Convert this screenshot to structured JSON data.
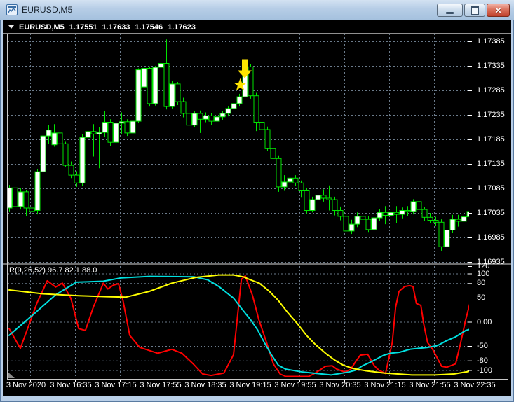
{
  "window": {
    "title": "EURUSD,M5",
    "controls": {
      "minimize_glyph": "",
      "restore_glyph": "",
      "close_glyph": "✕"
    }
  },
  "chart_header": {
    "symbol": "EURUSD,M5",
    "open": "1.17551",
    "high": "1.17633",
    "low": "1.17546",
    "close": "1.17623"
  },
  "indicator": {
    "label": "R(9,26,52) 96.7 82.1 88.0",
    "name": "R",
    "params": "9,26,52",
    "values": [
      "96.7",
      "82.1",
      "88.0"
    ]
  },
  "price_axis": {
    "labels": [
      "1.17385",
      "1.17335",
      "1.17285",
      "1.17235",
      "1.17185",
      "1.17135",
      "1.17085",
      "1.17035",
      "1.16985",
      "1.16935"
    ]
  },
  "indicator_axis": {
    "labels": [
      "120",
      "100",
      "80",
      "50",
      "0.00",
      "-50",
      "-80",
      "-100"
    ],
    "values": [
      120,
      100,
      80,
      50,
      0,
      -50,
      -80,
      -100
    ]
  },
  "time_axis": {
    "labels": [
      "3 Nov 2020",
      "3 Nov 16:35",
      "3 Nov 17:15",
      "3 Nov 17:55",
      "3 Nov 18:35",
      "3 Nov 19:15",
      "3 Nov 19:55",
      "3 Nov 20:35",
      "3 Nov 21:15",
      "3 Nov 21:55",
      "3 Nov 22:35"
    ]
  },
  "colors": {
    "background": "#000000",
    "grid": "#6b7b8b",
    "frame": "#c8c8c8",
    "separator": "#6e6e6e",
    "candle_outline": "#00e400",
    "bull_fill": "#ffffff",
    "bear_fill": "#000000",
    "fast_line": "#ff0000",
    "mid_line": "#00e0e0",
    "slow_line": "#ffff00",
    "annotation": "#ffe400",
    "text": "#ffffff"
  },
  "chart_data": [
    {
      "type": "candlestick",
      "symbol": "EURUSD",
      "timeframe": "M5",
      "ylim": [
        1.1693,
        1.17395
      ],
      "y_ticks": [
        1.17385,
        1.17335,
        1.17285,
        1.17235,
        1.17185,
        1.17135,
        1.17085,
        1.17035,
        1.16985,
        1.16935
      ],
      "x_tick_labels": [
        "3 Nov 2020",
        "3 Nov 16:35",
        "3 Nov 17:15",
        "3 Nov 17:55",
        "3 Nov 18:35",
        "3 Nov 19:15",
        "3 Nov 19:55",
        "3 Nov 20:35",
        "3 Nov 21:15",
        "3 Nov 21:55",
        "3 Nov 22:35"
      ],
      "candles": [
        [
          1.17045,
          1.17092,
          1.17038,
          1.17086
        ],
        [
          1.17086,
          1.17097,
          1.1704,
          1.17048
        ],
        [
          1.17048,
          1.17085,
          1.17042,
          1.17078
        ],
        [
          1.17078,
          1.17082,
          1.17028,
          1.17045
        ],
        [
          1.17045,
          1.17052,
          1.17025,
          1.17038
        ],
        [
          1.1704,
          1.17125,
          1.17032,
          1.17119
        ],
        [
          1.17119,
          1.172,
          1.17112,
          1.17192
        ],
        [
          1.17192,
          1.17215,
          1.17175,
          1.17204
        ],
        [
          1.17174,
          1.17216,
          1.1717,
          1.17198
        ],
        [
          1.17198,
          1.17205,
          1.1717,
          1.17176
        ],
        [
          1.17176,
          1.1718,
          1.17128,
          1.17132
        ],
        [
          1.17132,
          1.1714,
          1.17106,
          1.17112
        ],
        [
          1.17112,
          1.1712,
          1.17088,
          1.17096
        ],
        [
          1.17096,
          1.17195,
          1.1709,
          1.17189
        ],
        [
          1.17189,
          1.17236,
          1.17183,
          1.17201
        ],
        [
          1.17201,
          1.17216,
          1.1715,
          1.17196
        ],
        [
          1.17196,
          1.1721,
          1.17126,
          1.17199
        ],
        [
          1.17199,
          1.17243,
          1.1719,
          1.1722
        ],
        [
          1.1722,
          1.17226,
          1.17172,
          1.17179
        ],
        [
          1.17179,
          1.1723,
          1.17174,
          1.17218
        ],
        [
          1.17218,
          1.1724,
          1.17196,
          1.17221
        ],
        [
          1.17221,
          1.17226,
          1.17192,
          1.17198
        ],
        [
          1.17198,
          1.1724,
          1.17194,
          1.17222
        ],
        [
          1.17222,
          1.1733,
          1.17218,
          1.17327
        ],
        [
          1.17292,
          1.17351,
          1.17288,
          1.1733
        ],
        [
          1.1733,
          1.17334,
          1.17252,
          1.17258
        ],
        [
          1.17258,
          1.17335,
          1.17254,
          1.17332
        ],
        [
          1.17332,
          1.17351,
          1.17322,
          1.1734
        ],
        [
          1.1734,
          1.17389,
          1.17246,
          1.17252
        ],
        [
          1.17252,
          1.17305,
          1.17248,
          1.17298
        ],
        [
          1.17298,
          1.17302,
          1.17255,
          1.17262
        ],
        [
          1.17262,
          1.1727,
          1.1723,
          1.17238
        ],
        [
          1.17238,
          1.17246,
          1.17206,
          1.17214
        ],
        [
          1.17214,
          1.17242,
          1.1721,
          1.17238
        ],
        [
          1.17238,
          1.17244,
          1.17198,
          1.17226
        ],
        [
          1.17226,
          1.1724,
          1.1722,
          1.17233
        ],
        [
          1.17233,
          1.17238,
          1.17214,
          1.17222
        ],
        [
          1.17222,
          1.17236,
          1.17218,
          1.17231
        ],
        [
          1.17231,
          1.17243,
          1.17224,
          1.17238
        ],
        [
          1.17238,
          1.17252,
          1.17232,
          1.17248
        ],
        [
          1.17248,
          1.17262,
          1.17242,
          1.17258
        ],
        [
          1.17258,
          1.17278,
          1.17252,
          1.17272
        ],
        [
          1.17272,
          1.1734,
          1.17268,
          1.17333
        ],
        [
          1.17333,
          1.17338,
          1.17268,
          1.17274
        ],
        [
          1.17274,
          1.1728,
          1.17202,
          1.1722
        ],
        [
          1.1722,
          1.17226,
          1.17196,
          1.17205
        ],
        [
          1.17205,
          1.17211,
          1.17162,
          1.17166
        ],
        [
          1.17166,
          1.17172,
          1.1714,
          1.17146
        ],
        [
          1.17146,
          1.17151,
          1.17078,
          1.17088
        ],
        [
          1.17088,
          1.17112,
          1.1708,
          1.17098
        ],
        [
          1.17098,
          1.17113,
          1.17086,
          1.17106
        ],
        [
          1.17106,
          1.17112,
          1.1709,
          1.17096
        ],
        [
          1.17096,
          1.17101,
          1.17066,
          1.1708
        ],
        [
          1.1708,
          1.17085,
          1.17034,
          1.1704
        ],
        [
          1.1704,
          1.17068,
          1.17036,
          1.17062
        ],
        [
          1.17062,
          1.17086,
          1.17056,
          1.17071
        ],
        [
          1.17071,
          1.17083,
          1.17058,
          1.17065
        ],
        [
          1.17065,
          1.17091,
          1.1704,
          1.17062
        ],
        [
          1.17062,
          1.17068,
          1.1703,
          1.1704
        ],
        [
          1.1704,
          1.17048,
          1.1702,
          1.17028
        ],
        [
          1.17028,
          1.17034,
          1.1699,
          1.16998
        ],
        [
          1.16998,
          1.17021,
          1.16992,
          1.17012
        ],
        [
          1.17012,
          1.17036,
          1.17006,
          1.17028
        ],
        [
          1.17028,
          1.17041,
          1.1701,
          1.17022
        ],
        [
          1.17022,
          1.17028,
          1.16996,
          1.17001
        ],
        [
          1.17001,
          1.17031,
          1.16996,
          1.17025
        ],
        [
          1.17025,
          1.17043,
          1.17018,
          1.17036
        ],
        [
          1.17036,
          1.17049,
          1.17012,
          1.1703
        ],
        [
          1.1703,
          1.17041,
          1.17022,
          1.17036
        ],
        [
          1.17036,
          1.17049,
          1.17014,
          1.17032
        ],
        [
          1.17032,
          1.17046,
          1.17024,
          1.1704
        ],
        [
          1.1704,
          1.17049,
          1.17029,
          1.17038
        ],
        [
          1.17038,
          1.17063,
          1.17032,
          1.17058
        ],
        [
          1.17058,
          1.17062,
          1.17034,
          1.17042
        ],
        [
          1.17042,
          1.17047,
          1.17018,
          1.17026
        ],
        [
          1.17026,
          1.17035,
          1.17014,
          1.1702
        ],
        [
          1.1702,
          1.17027,
          1.17009,
          1.17016
        ],
        [
          1.17016,
          1.17022,
          1.16958,
          1.16966
        ],
        [
          1.16966,
          1.17006,
          1.1696,
          1.17
        ],
        [
          1.17,
          1.17031,
          1.16994,
          1.17022
        ],
        [
          1.17022,
          1.17031,
          1.17007,
          1.17018
        ],
        [
          1.17018,
          1.17033,
          1.17012,
          1.17027
        ],
        [
          1.17027,
          1.17043,
          1.1702,
          1.17038
        ]
      ]
    },
    {
      "type": "line",
      "title": "R(9,26,52)",
      "ylim": [
        -120,
        120
      ],
      "y_ticks": [
        120,
        100,
        80,
        50,
        0,
        -50,
        -80,
        -100
      ],
      "series": [
        {
          "name": "R fast",
          "color": "#ff0000",
          "points": [
            [
              1,
              -14
            ],
            [
              3,
              -55
            ],
            [
              6,
              40
            ],
            [
              7.8,
              85
            ],
            [
              9.3,
              72
            ],
            [
              10.5,
              80
            ],
            [
              12,
              49
            ],
            [
              13.4,
              -14
            ],
            [
              14.6,
              -18
            ],
            [
              16,
              30
            ],
            [
              17.8,
              80
            ],
            [
              18.6,
              68
            ],
            [
              19.6,
              76
            ],
            [
              20.5,
              79
            ],
            [
              21.3,
              44
            ],
            [
              22.5,
              -28
            ],
            [
              24.3,
              -53
            ],
            [
              27.5,
              -65
            ],
            [
              30,
              -57
            ],
            [
              31.8,
              -65
            ],
            [
              33.8,
              -87
            ],
            [
              35.5,
              -108
            ],
            [
              37,
              -111
            ],
            [
              39.3,
              -106
            ],
            [
              41,
              -68
            ],
            [
              42.4,
              88
            ],
            [
              43.1,
              95
            ],
            [
              44.4,
              54
            ],
            [
              45.5,
              5
            ],
            [
              46.9,
              -43
            ],
            [
              48.1,
              -87
            ],
            [
              49.3,
              -108
            ],
            [
              50.3,
              -113
            ],
            [
              54.4,
              -113
            ],
            [
              55.6,
              -106
            ],
            [
              57.4,
              -92
            ],
            [
              58.6,
              -91
            ],
            [
              59.4,
              -98
            ],
            [
              60.9,
              -104
            ],
            [
              61.9,
              -98
            ],
            [
              62.8,
              -82
            ],
            [
              63.6,
              -69
            ],
            [
              64.9,
              -67
            ],
            [
              66.1,
              -91
            ],
            [
              66.9,
              -100
            ],
            [
              68.1,
              -107
            ],
            [
              69.3,
              -43
            ],
            [
              69.9,
              30
            ],
            [
              70.5,
              63
            ],
            [
              71.5,
              73
            ],
            [
              72.4,
              75
            ],
            [
              73,
              73
            ],
            [
              73.6,
              38
            ],
            [
              74.4,
              34
            ],
            [
              74.9,
              -4
            ],
            [
              75.6,
              -43
            ],
            [
              76.5,
              -57
            ],
            [
              78.1,
              -92
            ],
            [
              79,
              -94
            ],
            [
              80.6,
              -87
            ],
            [
              81.5,
              -43
            ],
            [
              82.4,
              5
            ],
            [
              83.3,
              45
            ]
          ]
        },
        {
          "name": "R mid",
          "color": "#00e0e0",
          "points": [
            [
              1,
              -28
            ],
            [
              5,
              12
            ],
            [
              9.3,
              56
            ],
            [
              13,
              82
            ],
            [
              17.8,
              84
            ],
            [
              21,
              91
            ],
            [
              26,
              94
            ],
            [
              34,
              93
            ],
            [
              36.4,
              87
            ],
            [
              38.4,
              73
            ],
            [
              41,
              49
            ],
            [
              42.8,
              22
            ],
            [
              44,
              5
            ],
            [
              45.3,
              -17
            ],
            [
              46.5,
              -43
            ],
            [
              47.8,
              -69
            ],
            [
              49,
              -90
            ],
            [
              50.3,
              -98
            ],
            [
              53.4,
              -104
            ],
            [
              58.4,
              -110
            ],
            [
              61.5,
              -104
            ],
            [
              62.8,
              -100
            ],
            [
              64,
              -91
            ],
            [
              65.3,
              -84
            ],
            [
              66.5,
              -77
            ],
            [
              67.8,
              -69
            ],
            [
              69,
              -65
            ],
            [
              70.6,
              -63
            ],
            [
              72.4,
              -57
            ],
            [
              74,
              -55
            ],
            [
              75.6,
              -53
            ],
            [
              77.4,
              -49
            ],
            [
              79,
              -39
            ],
            [
              80.6,
              -31
            ],
            [
              82.4,
              -18
            ],
            [
              83.3,
              -15
            ]
          ]
        },
        {
          "name": "R slow",
          "color": "#ffff00",
          "points": [
            [
              1,
              66
            ],
            [
              7,
              58
            ],
            [
              13.4,
              54
            ],
            [
              18.4,
              52
            ],
            [
              21.8,
              51
            ],
            [
              26,
              63
            ],
            [
              30,
              80
            ],
            [
              34.3,
              92
            ],
            [
              38.4,
              97
            ],
            [
              41,
              97
            ],
            [
              42.8,
              93
            ],
            [
              44,
              87
            ],
            [
              45.6,
              80
            ],
            [
              47.4,
              63
            ],
            [
              49,
              44
            ],
            [
              50.6,
              20
            ],
            [
              52.4,
              -4
            ],
            [
              54,
              -28
            ],
            [
              55.6,
              -47
            ],
            [
              57.4,
              -65
            ],
            [
              59,
              -79
            ],
            [
              60.6,
              -90
            ],
            [
              62.4,
              -97
            ],
            [
              64.4,
              -101
            ],
            [
              67.8,
              -106
            ],
            [
              72.8,
              -110
            ],
            [
              76.9,
              -110
            ],
            [
              80.3,
              -108
            ],
            [
              83.3,
              -102
            ]
          ]
        }
      ]
    }
  ],
  "annotations": [
    {
      "type": "down-arrow",
      "icon": "down-arrow-icon",
      "color": "#ffe400",
      "candle_index": 43,
      "price": 1.1731
    },
    {
      "type": "star",
      "icon": "star-icon",
      "color": "#ffe400",
      "candle_index": 42.2,
      "price": 1.17296
    }
  ]
}
